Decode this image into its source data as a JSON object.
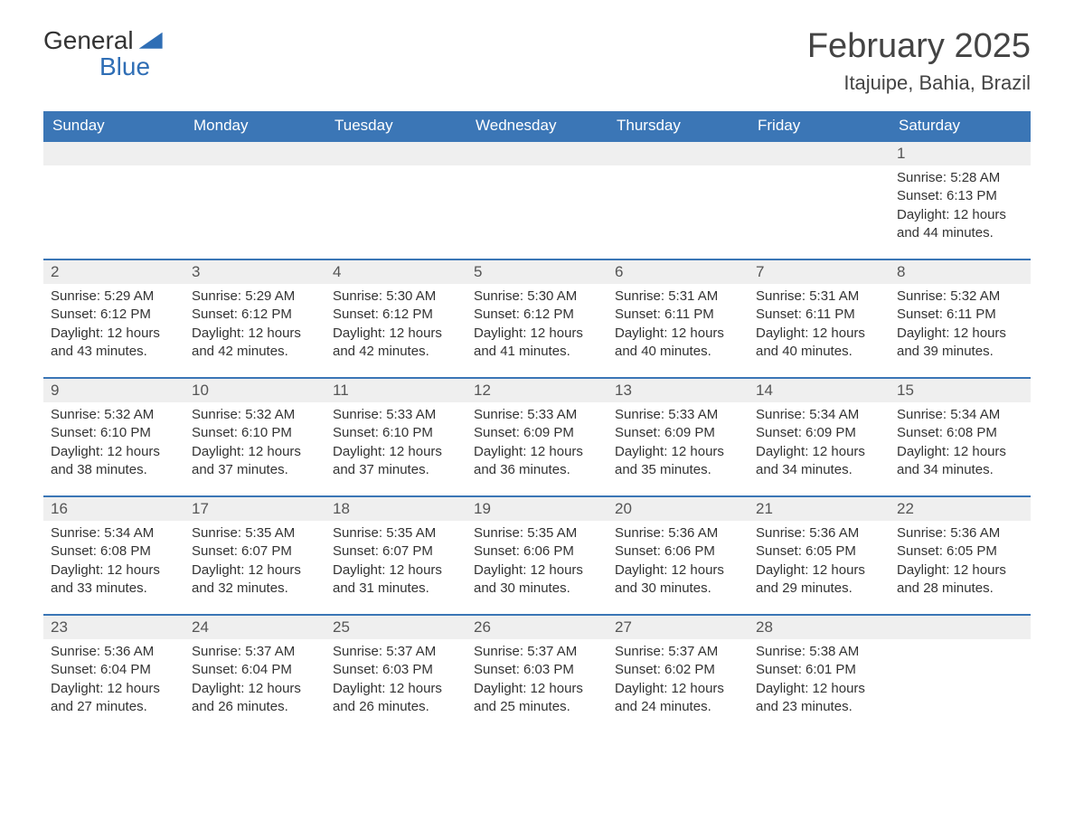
{
  "logo": {
    "word1": "General",
    "word2": "Blue"
  },
  "title": "February 2025",
  "location": "Itajuipe, Bahia, Brazil",
  "colors": {
    "brand": "#3b76b6",
    "header_bg": "#3b76b6",
    "header_text": "#ffffff",
    "daynum_bg": "#efefef",
    "text": "#333333",
    "page_bg": "#ffffff"
  },
  "weekdays": [
    "Sunday",
    "Monday",
    "Tuesday",
    "Wednesday",
    "Thursday",
    "Friday",
    "Saturday"
  ],
  "weeks": [
    [
      null,
      null,
      null,
      null,
      null,
      null,
      {
        "n": "1",
        "sunrise": "Sunrise: 5:28 AM",
        "sunset": "Sunset: 6:13 PM",
        "daylight": "Daylight: 12 hours and 44 minutes."
      }
    ],
    [
      {
        "n": "2",
        "sunrise": "Sunrise: 5:29 AM",
        "sunset": "Sunset: 6:12 PM",
        "daylight": "Daylight: 12 hours and 43 minutes."
      },
      {
        "n": "3",
        "sunrise": "Sunrise: 5:29 AM",
        "sunset": "Sunset: 6:12 PM",
        "daylight": "Daylight: 12 hours and 42 minutes."
      },
      {
        "n": "4",
        "sunrise": "Sunrise: 5:30 AM",
        "sunset": "Sunset: 6:12 PM",
        "daylight": "Daylight: 12 hours and 42 minutes."
      },
      {
        "n": "5",
        "sunrise": "Sunrise: 5:30 AM",
        "sunset": "Sunset: 6:12 PM",
        "daylight": "Daylight: 12 hours and 41 minutes."
      },
      {
        "n": "6",
        "sunrise": "Sunrise: 5:31 AM",
        "sunset": "Sunset: 6:11 PM",
        "daylight": "Daylight: 12 hours and 40 minutes."
      },
      {
        "n": "7",
        "sunrise": "Sunrise: 5:31 AM",
        "sunset": "Sunset: 6:11 PM",
        "daylight": "Daylight: 12 hours and 40 minutes."
      },
      {
        "n": "8",
        "sunrise": "Sunrise: 5:32 AM",
        "sunset": "Sunset: 6:11 PM",
        "daylight": "Daylight: 12 hours and 39 minutes."
      }
    ],
    [
      {
        "n": "9",
        "sunrise": "Sunrise: 5:32 AM",
        "sunset": "Sunset: 6:10 PM",
        "daylight": "Daylight: 12 hours and 38 minutes."
      },
      {
        "n": "10",
        "sunrise": "Sunrise: 5:32 AM",
        "sunset": "Sunset: 6:10 PM",
        "daylight": "Daylight: 12 hours and 37 minutes."
      },
      {
        "n": "11",
        "sunrise": "Sunrise: 5:33 AM",
        "sunset": "Sunset: 6:10 PM",
        "daylight": "Daylight: 12 hours and 37 minutes."
      },
      {
        "n": "12",
        "sunrise": "Sunrise: 5:33 AM",
        "sunset": "Sunset: 6:09 PM",
        "daylight": "Daylight: 12 hours and 36 minutes."
      },
      {
        "n": "13",
        "sunrise": "Sunrise: 5:33 AM",
        "sunset": "Sunset: 6:09 PM",
        "daylight": "Daylight: 12 hours and 35 minutes."
      },
      {
        "n": "14",
        "sunrise": "Sunrise: 5:34 AM",
        "sunset": "Sunset: 6:09 PM",
        "daylight": "Daylight: 12 hours and 34 minutes."
      },
      {
        "n": "15",
        "sunrise": "Sunrise: 5:34 AM",
        "sunset": "Sunset: 6:08 PM",
        "daylight": "Daylight: 12 hours and 34 minutes."
      }
    ],
    [
      {
        "n": "16",
        "sunrise": "Sunrise: 5:34 AM",
        "sunset": "Sunset: 6:08 PM",
        "daylight": "Daylight: 12 hours and 33 minutes."
      },
      {
        "n": "17",
        "sunrise": "Sunrise: 5:35 AM",
        "sunset": "Sunset: 6:07 PM",
        "daylight": "Daylight: 12 hours and 32 minutes."
      },
      {
        "n": "18",
        "sunrise": "Sunrise: 5:35 AM",
        "sunset": "Sunset: 6:07 PM",
        "daylight": "Daylight: 12 hours and 31 minutes."
      },
      {
        "n": "19",
        "sunrise": "Sunrise: 5:35 AM",
        "sunset": "Sunset: 6:06 PM",
        "daylight": "Daylight: 12 hours and 30 minutes."
      },
      {
        "n": "20",
        "sunrise": "Sunrise: 5:36 AM",
        "sunset": "Sunset: 6:06 PM",
        "daylight": "Daylight: 12 hours and 30 minutes."
      },
      {
        "n": "21",
        "sunrise": "Sunrise: 5:36 AM",
        "sunset": "Sunset: 6:05 PM",
        "daylight": "Daylight: 12 hours and 29 minutes."
      },
      {
        "n": "22",
        "sunrise": "Sunrise: 5:36 AM",
        "sunset": "Sunset: 6:05 PM",
        "daylight": "Daylight: 12 hours and 28 minutes."
      }
    ],
    [
      {
        "n": "23",
        "sunrise": "Sunrise: 5:36 AM",
        "sunset": "Sunset: 6:04 PM",
        "daylight": "Daylight: 12 hours and 27 minutes."
      },
      {
        "n": "24",
        "sunrise": "Sunrise: 5:37 AM",
        "sunset": "Sunset: 6:04 PM",
        "daylight": "Daylight: 12 hours and 26 minutes."
      },
      {
        "n": "25",
        "sunrise": "Sunrise: 5:37 AM",
        "sunset": "Sunset: 6:03 PM",
        "daylight": "Daylight: 12 hours and 26 minutes."
      },
      {
        "n": "26",
        "sunrise": "Sunrise: 5:37 AM",
        "sunset": "Sunset: 6:03 PM",
        "daylight": "Daylight: 12 hours and 25 minutes."
      },
      {
        "n": "27",
        "sunrise": "Sunrise: 5:37 AM",
        "sunset": "Sunset: 6:02 PM",
        "daylight": "Daylight: 12 hours and 24 minutes."
      },
      {
        "n": "28",
        "sunrise": "Sunrise: 5:38 AM",
        "sunset": "Sunset: 6:01 PM",
        "daylight": "Daylight: 12 hours and 23 minutes."
      },
      null
    ]
  ]
}
